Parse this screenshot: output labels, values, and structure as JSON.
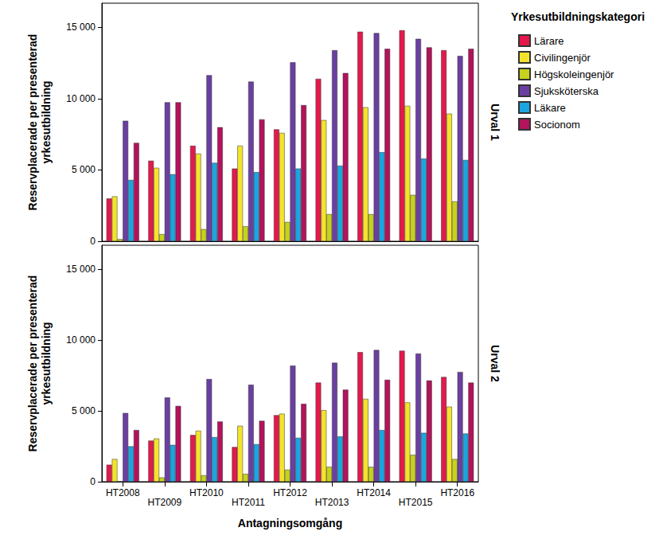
{
  "chart_data": [
    {
      "type": "bar",
      "title": "Urval 1",
      "y_label": "Reservplacerade per presenterad\nyrkesutbildning",
      "legend_title": "Yrkesutbildningskategori",
      "legend": "upper right",
      "grid": false,
      "tick_labels": "y",
      "categories": [
        "HT2008",
        "HT2009",
        "HT2010",
        "HT2011",
        "HT2012",
        "HT2013",
        "HT2014",
        "HT2015",
        "HT2016"
      ],
      "ylim": [
        0,
        16700
      ],
      "yticks": [
        0,
        {
          "value": 5000,
          "label": "5 000"
        },
        {
          "value": 10000,
          "label": "10 000"
        },
        {
          "value": 15000,
          "label": "15 000"
        }
      ],
      "series": [
        {
          "name": "Lärare",
          "color": "#e4194b",
          "values": [
            3000,
            5650,
            6700,
            5100,
            7850,
            11400,
            14700,
            14800,
            13400
          ]
        },
        {
          "name": "Civilingenjör",
          "color": "#f4e32c",
          "values": [
            3150,
            5150,
            6150,
            6700,
            7600,
            8500,
            9400,
            9500,
            8950
          ]
        },
        {
          "name": "Högskoleingenjör",
          "color": "#c6d21c",
          "values": [
            150,
            500,
            850,
            1050,
            1350,
            1900,
            1900,
            3250,
            2800
          ]
        },
        {
          "name": "Sjuksköterska",
          "color": "#6b3fa1",
          "values": [
            8450,
            9750,
            11650,
            11200,
            12550,
            13400,
            14600,
            14200,
            13000
          ]
        },
        {
          "name": "Läkare",
          "color": "#1ba6e0",
          "values": [
            4300,
            4700,
            5500,
            4850,
            5100,
            5300,
            6250,
            5800,
            5700
          ]
        },
        {
          "name": "Socionom",
          "color": "#b2135b",
          "values": [
            6900,
            9750,
            8000,
            8550,
            9550,
            11800,
            13500,
            13600,
            13500
          ]
        }
      ]
    },
    {
      "type": "bar",
      "title": "Urval 2",
      "y_label": "Reservplacerade per presenterad\nyrkesutbildning",
      "x_label": "Antagningsomgång",
      "grid": false,
      "categories": [
        "HT2008",
        "HT2009",
        "HT2010",
        "HT2011",
        "HT2012",
        "HT2013",
        "HT2014",
        "HT2015",
        "HT2016"
      ],
      "ylim": [
        0,
        16700
      ],
      "yticks": [
        0,
        {
          "value": 5000,
          "label": "5 000"
        },
        {
          "value": 10000,
          "label": "10 000"
        },
        {
          "value": 15000,
          "label": "15 000"
        }
      ],
      "series": [
        {
          "name": "Lärare",
          "color": "#e4194b",
          "values": [
            1200,
            2900,
            3300,
            2450,
            4700,
            7000,
            9150,
            9250,
            7400
          ]
        },
        {
          "name": "Civilingenjör",
          "color": "#f4e32c",
          "values": [
            1600,
            3050,
            3600,
            3950,
            4800,
            5050,
            5850,
            5600,
            5300
          ]
        },
        {
          "name": "Högskoleingenjör",
          "color": "#c6d21c",
          "values": [
            0,
            300,
            450,
            550,
            850,
            1050,
            1050,
            1900,
            1600
          ]
        },
        {
          "name": "Sjuksköterska",
          "color": "#6b3fa1",
          "values": [
            4850,
            5950,
            7250,
            6850,
            8200,
            8400,
            9300,
            9050,
            7750
          ]
        },
        {
          "name": "Läkare",
          "color": "#1ba6e0",
          "values": [
            2500,
            2600,
            3150,
            2650,
            3100,
            3200,
            3650,
            3450,
            3400
          ]
        },
        {
          "name": "Socionom",
          "color": "#b2135b",
          "values": [
            3650,
            5350,
            4250,
            4300,
            5500,
            6500,
            7200,
            7150,
            7000
          ]
        }
      ]
    }
  ]
}
